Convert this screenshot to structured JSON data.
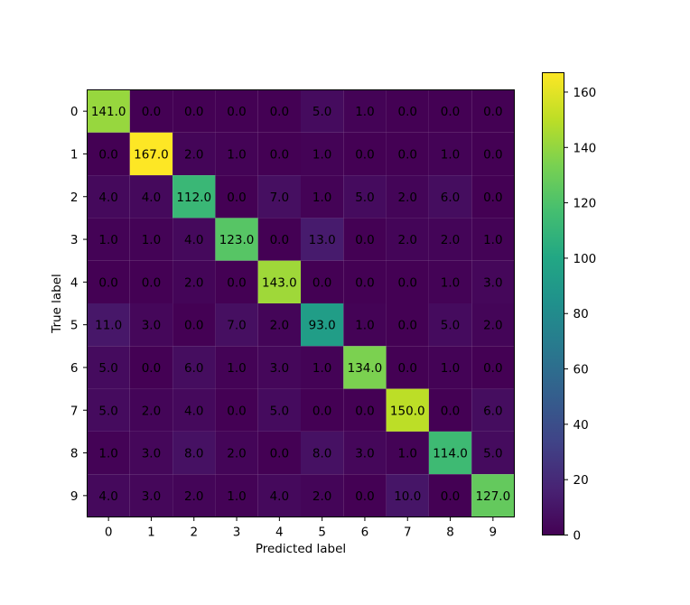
{
  "chart_data": {
    "type": "heatmap",
    "title": "",
    "xlabel": "Predicted label",
    "ylabel": "True label",
    "x_categories": [
      "0",
      "1",
      "2",
      "3",
      "4",
      "5",
      "6",
      "7",
      "8",
      "9"
    ],
    "y_categories": [
      "0",
      "1",
      "2",
      "3",
      "4",
      "5",
      "6",
      "7",
      "8",
      "9"
    ],
    "matrix": [
      [
        141,
        0,
        0,
        0,
        0,
        5,
        1,
        0,
        0,
        0
      ],
      [
        0,
        167,
        2,
        1,
        0,
        1,
        0,
        0,
        1,
        0
      ],
      [
        4,
        4,
        112,
        0,
        7,
        1,
        5,
        2,
        6,
        0
      ],
      [
        1,
        1,
        4,
        123,
        0,
        13,
        0,
        2,
        2,
        1
      ],
      [
        0,
        0,
        2,
        0,
        143,
        0,
        0,
        0,
        1,
        3
      ],
      [
        11,
        3,
        0,
        7,
        2,
        93,
        1,
        0,
        5,
        2
      ],
      [
        5,
        0,
        6,
        1,
        3,
        1,
        134,
        0,
        1,
        0
      ],
      [
        5,
        2,
        4,
        0,
        5,
        0,
        0,
        150,
        0,
        6
      ],
      [
        1,
        3,
        8,
        2,
        0,
        8,
        3,
        1,
        114,
        5
      ],
      [
        4,
        3,
        2,
        1,
        4,
        2,
        0,
        10,
        0,
        127
      ]
    ],
    "value_format_decimals": 1,
    "colormap": "viridis",
    "vmin": 0,
    "vmax": 167,
    "colorbar": {
      "ticks": [
        0,
        20,
        40,
        60,
        80,
        100,
        120,
        140,
        160
      ]
    },
    "text_colors": {
      "on_dark": "#fde725",
      "on_light": "#1f1f1f"
    },
    "grid": false
  }
}
